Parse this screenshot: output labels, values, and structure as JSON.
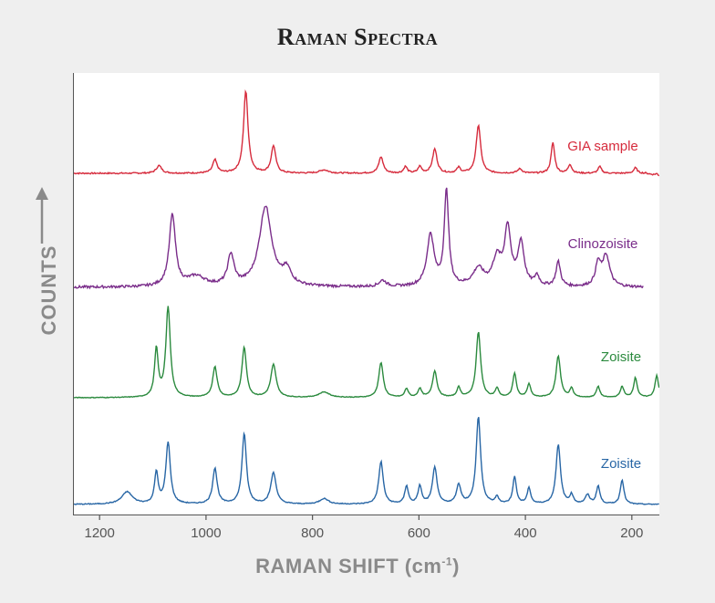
{
  "chart_data": {
    "type": "line",
    "title": "Raman Spectra",
    "xlabel": "RAMAN SHIFT (cm",
    "xlabel_unit_superscript": "-1",
    "xlabel_close": ")",
    "ylabel": "COUNTS",
    "xlim": [
      1250,
      150
    ],
    "x_reversed": true,
    "xticks": [
      1200,
      1000,
      800,
      600,
      400,
      200
    ],
    "grid": false,
    "series": [
      {
        "name": "GIA sample",
        "color": "#d62b3c",
        "baseline": 1.0,
        "noise": 0.006,
        "x_range": [
          1250,
          150
        ],
        "peaks": [
          [
            1090,
            0.07,
            6
          ],
          [
            985,
            0.12,
            5
          ],
          [
            927,
            0.75,
            5
          ],
          [
            875,
            0.25,
            5
          ],
          [
            780,
            0.03,
            10
          ],
          [
            673,
            0.15,
            5
          ],
          [
            627,
            0.06,
            4
          ],
          [
            600,
            0.06,
            4
          ],
          [
            572,
            0.22,
            5
          ],
          [
            527,
            0.05,
            4
          ],
          [
            490,
            0.44,
            5
          ],
          [
            412,
            0.04,
            5
          ],
          [
            350,
            0.28,
            4
          ],
          [
            318,
            0.08,
            4
          ],
          [
            262,
            0.06,
            4
          ],
          [
            195,
            0.05,
            4
          ],
          [
            155,
            0.02,
            4
          ]
        ]
      },
      {
        "name": "Clinozoisite",
        "color": "#7a2d8a",
        "baseline": 0.0,
        "noise": 0.01,
        "x_range": [
          1250,
          180
        ],
        "peaks": [
          [
            1065,
            0.58,
            7
          ],
          [
            1020,
            0.08,
            20
          ],
          [
            955,
            0.25,
            7
          ],
          [
            890,
            0.65,
            14
          ],
          [
            850,
            0.12,
            10
          ],
          [
            670,
            0.05,
            8
          ],
          [
            580,
            0.42,
            8
          ],
          [
            550,
            0.77,
            5
          ],
          [
            490,
            0.14,
            12
          ],
          [
            455,
            0.22,
            10
          ],
          [
            435,
            0.46,
            7
          ],
          [
            410,
            0.35,
            7
          ],
          [
            380,
            0.08,
            5
          ],
          [
            340,
            0.2,
            5
          ],
          [
            265,
            0.18,
            6
          ],
          [
            250,
            0.25,
            8
          ]
        ]
      },
      {
        "name": "Zoisite",
        "color": "#2b8a3e",
        "baseline": 0.0,
        "noise": 0.003,
        "x_range": [
          1250,
          150
        ],
        "peaks": [
          [
            1095,
            0.44,
            4
          ],
          [
            1073,
            0.82,
            5
          ],
          [
            985,
            0.28,
            5
          ],
          [
            930,
            0.46,
            5
          ],
          [
            875,
            0.3,
            6
          ],
          [
            780,
            0.05,
            12
          ],
          [
            673,
            0.32,
            5
          ],
          [
            625,
            0.08,
            4
          ],
          [
            600,
            0.08,
            4
          ],
          [
            572,
            0.24,
            5
          ],
          [
            527,
            0.09,
            4
          ],
          [
            490,
            0.6,
            5
          ],
          [
            455,
            0.08,
            4
          ],
          [
            422,
            0.22,
            4
          ],
          [
            395,
            0.12,
            4
          ],
          [
            340,
            0.38,
            5
          ],
          [
            315,
            0.08,
            4
          ],
          [
            265,
            0.1,
            4
          ],
          [
            220,
            0.1,
            4
          ],
          [
            195,
            0.18,
            4
          ],
          [
            155,
            0.2,
            4
          ]
        ]
      },
      {
        "name": "Zoisite",
        "color": "#2866a5",
        "baseline": 0.0,
        "noise": 0.004,
        "x_range": [
          1250,
          150
        ],
        "peaks": [
          [
            1150,
            0.11,
            12
          ],
          [
            1095,
            0.28,
            4
          ],
          [
            1073,
            0.55,
            5
          ],
          [
            985,
            0.32,
            5
          ],
          [
            930,
            0.63,
            5
          ],
          [
            875,
            0.28,
            6
          ],
          [
            780,
            0.05,
            10
          ],
          [
            673,
            0.38,
            5
          ],
          [
            625,
            0.16,
            4
          ],
          [
            600,
            0.16,
            4
          ],
          [
            572,
            0.33,
            5
          ],
          [
            527,
            0.17,
            5
          ],
          [
            490,
            0.78,
            5
          ],
          [
            455,
            0.06,
            4
          ],
          [
            422,
            0.24,
            4
          ],
          [
            395,
            0.14,
            4
          ],
          [
            340,
            0.53,
            5
          ],
          [
            315,
            0.08,
            4
          ],
          [
            285,
            0.08,
            5
          ],
          [
            265,
            0.16,
            4
          ],
          [
            220,
            0.22,
            4
          ]
        ]
      }
    ]
  }
}
